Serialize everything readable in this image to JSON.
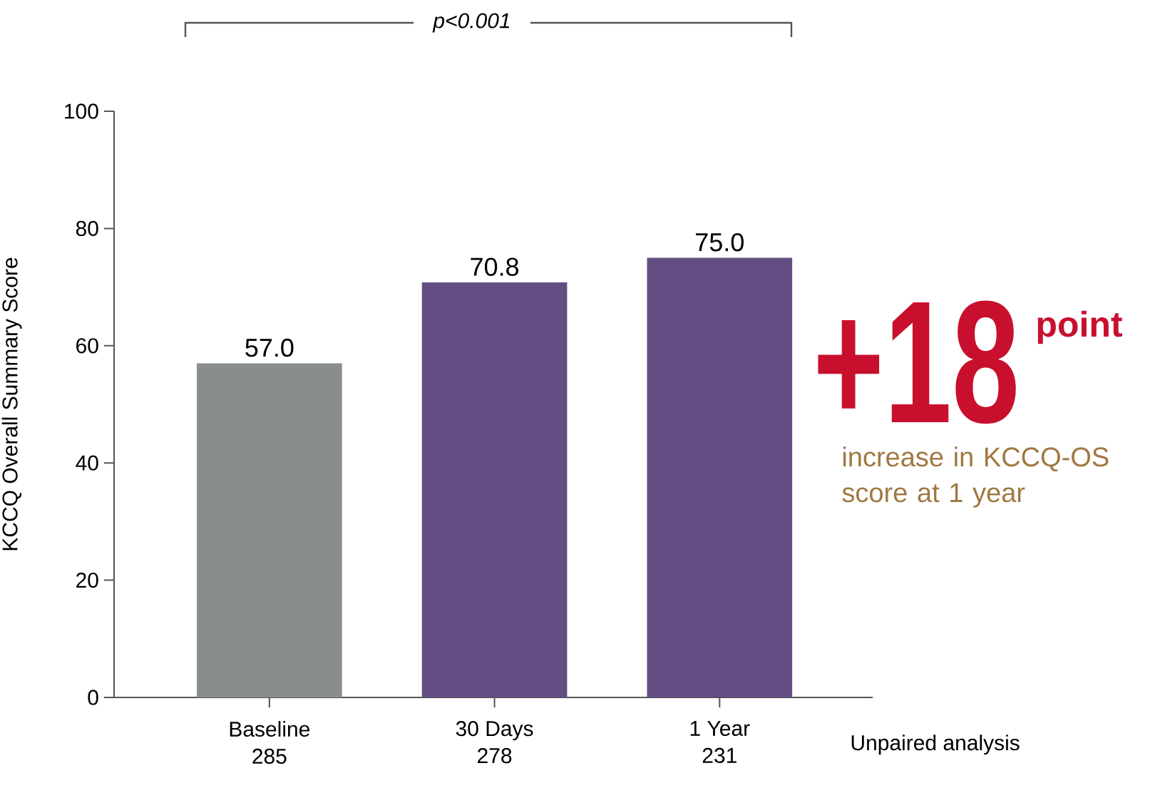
{
  "chart_data": {
    "type": "bar",
    "ylabel": "KCCQ Overall Summary Score",
    "categories": [
      "Baseline",
      "30 Days",
      "1 Year"
    ],
    "values": [
      57.0,
      70.8,
      75.0
    ],
    "colors": [
      "#8a8d8d",
      "#634d82",
      "#634d82"
    ],
    "ylim": [
      0,
      100
    ],
    "yticks": [
      0,
      20,
      40,
      60,
      80,
      100
    ],
    "value_labels": [
      "57.0",
      "70.8",
      "75.0"
    ],
    "annotations": [
      "p<0.001",
      "+18",
      "point",
      "increase in KCCQ-OS score at 1 year",
      "Unpaired analysis",
      "285",
      "278",
      "231"
    ]
  }
}
